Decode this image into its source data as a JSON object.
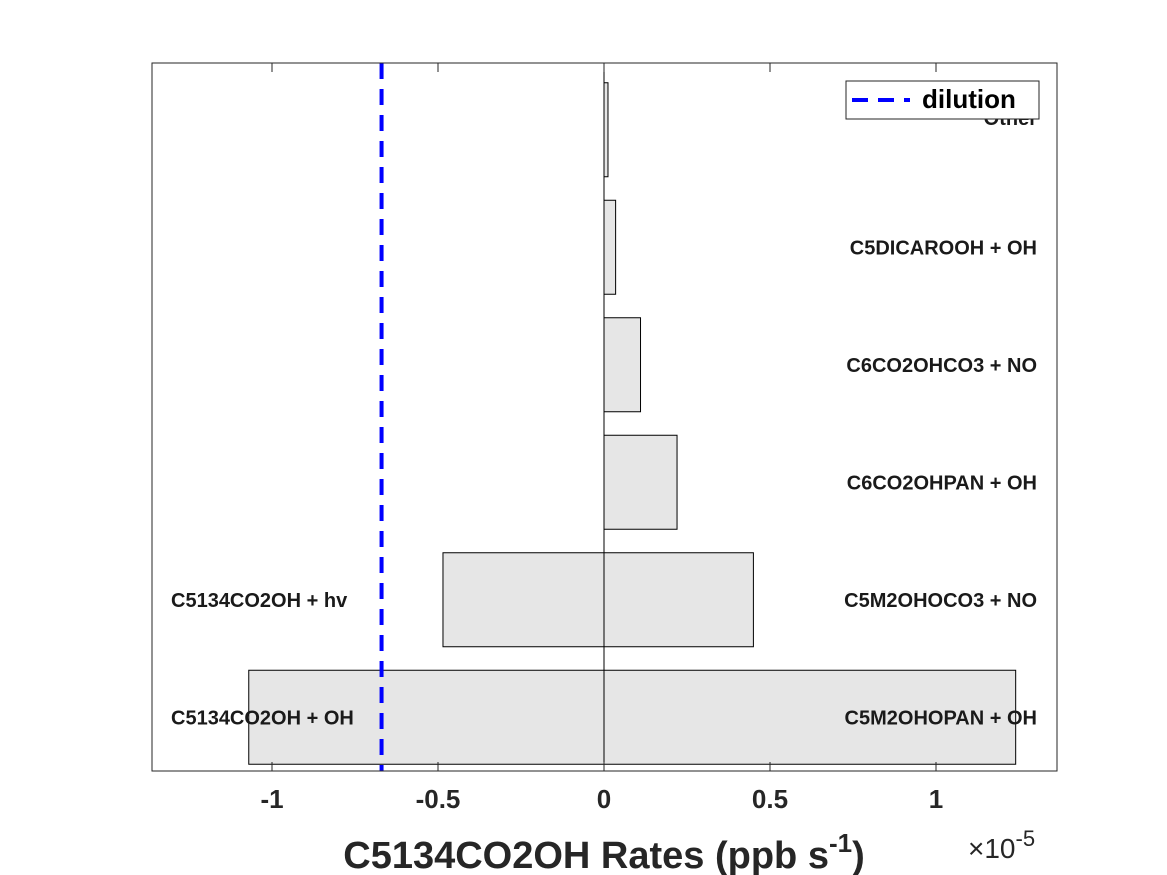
{
  "chart_data": {
    "type": "bar",
    "orientation": "horizontal",
    "stacked": "diverging",
    "xlabel": "C5134CO2OH Rates (ppb s",
    "xlabel_superscript": "-1",
    "xlabel_suffix": ")",
    "x_multiplier_label": "×10",
    "x_multiplier_exponent": "-5",
    "xlim": [
      -1.38,
      1.36
    ],
    "xticks": [
      -1,
      -0.5,
      0,
      0.5,
      1
    ],
    "xtick_labels": [
      "-1",
      "-0.5",
      "0",
      "0.5",
      "1"
    ],
    "rows": 6,
    "positive_series": [
      {
        "label": "C5M2OHOPAN + OH",
        "value": 1.24
      },
      {
        "label": "C5M2OHOCO3 + NO",
        "value": 0.45
      },
      {
        "label": "C6CO2OHPAN + OH",
        "value": 0.22
      },
      {
        "label": "C6CO2OHCO3 + NO",
        "value": 0.11
      },
      {
        "label": "C5DICAROOH + OH",
        "value": 0.035
      },
      {
        "label": "Other",
        "value": 0.012
      }
    ],
    "negative_series": [
      {
        "label": "C5134CO2OH + OH",
        "value": -1.07
      },
      {
        "label": "C5134CO2OH + hv",
        "value": -0.485
      }
    ],
    "dilution": {
      "label": "dilution",
      "value": -0.67,
      "color": "#0000ff",
      "style": "dashed"
    },
    "bar_fill": "#e6e6e6",
    "bar_edge": "#000000",
    "grid": false,
    "legend_position": "top-right"
  }
}
